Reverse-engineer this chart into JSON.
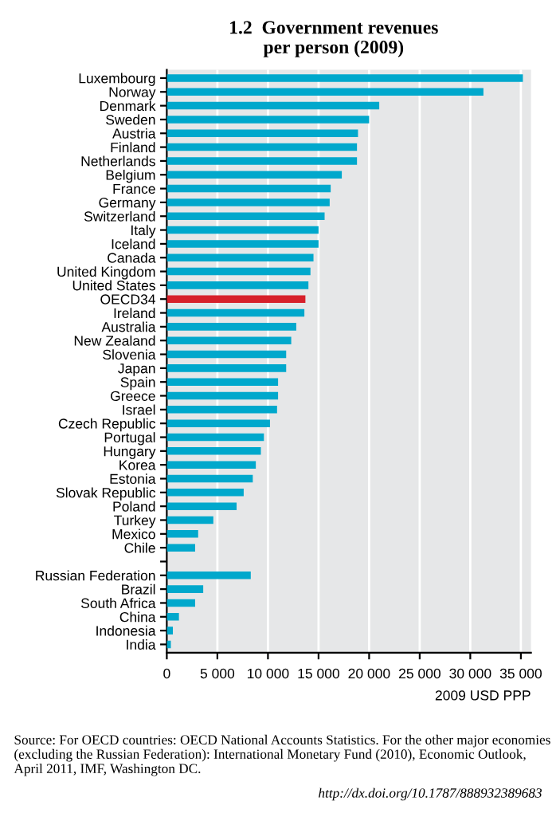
{
  "chart_data": {
    "type": "bar",
    "orientation": "horizontal",
    "title": "1.2  Government revenues\nper person (2009)",
    "xlabel": "2009 USD PPP",
    "categories": [
      "Luxembourg",
      "Norway",
      "Denmark",
      "Sweden",
      "Austria",
      "Finland",
      "Netherlands",
      "Belgium",
      "France",
      "Germany",
      "Switzerland",
      "Italy",
      "Iceland",
      "Canada",
      "United Kingdom",
      "United States",
      "OECD34",
      "Ireland",
      "Australia",
      "New Zealand",
      "Slovenia",
      "Japan",
      "Spain",
      "Greece",
      "Israel",
      "Czech Republic",
      "Portugal",
      "Hungary",
      "Korea",
      "Estonia",
      "Slovak Republic",
      "Poland",
      "Turkey",
      "Mexico",
      "Chile",
      null,
      "Russian Federation",
      "Brazil",
      "South Africa",
      "China",
      "Indonesia",
      "India"
    ],
    "values": [
      35200,
      31300,
      21000,
      20000,
      18900,
      18800,
      18800,
      17300,
      16200,
      16100,
      15600,
      15000,
      15000,
      14500,
      14200,
      14000,
      13700,
      13600,
      12800,
      12300,
      11800,
      11800,
      11000,
      11000,
      10900,
      10200,
      9600,
      9300,
      8800,
      8500,
      7600,
      6900,
      4600,
      3100,
      2800,
      null,
      8300,
      3600,
      2800,
      1200,
      600,
      400
    ],
    "colors": [
      "#00a8cc",
      "#00a8cc",
      "#00a8cc",
      "#00a8cc",
      "#00a8cc",
      "#00a8cc",
      "#00a8cc",
      "#00a8cc",
      "#00a8cc",
      "#00a8cc",
      "#00a8cc",
      "#00a8cc",
      "#00a8cc",
      "#00a8cc",
      "#00a8cc",
      "#00a8cc",
      "#d7202a",
      "#00a8cc",
      "#00a8cc",
      "#00a8cc",
      "#00a8cc",
      "#00a8cc",
      "#00a8cc",
      "#00a8cc",
      "#00a8cc",
      "#00a8cc",
      "#00a8cc",
      "#00a8cc",
      "#00a8cc",
      "#00a8cc",
      "#00a8cc",
      "#00a8cc",
      "#00a8cc",
      "#00a8cc",
      "#00a8cc",
      "#00a8cc",
      "#00a8cc",
      "#00a8cc",
      "#00a8cc",
      "#00a8cc",
      "#00a8cc",
      "#00a8cc"
    ],
    "xlim": [
      0,
      36000
    ],
    "xticks": [
      0,
      {
        "value": 5000,
        "label": "5 000"
      },
      {
        "value": 10000,
        "label": "10 000"
      },
      {
        "value": 15000,
        "label": "15 000"
      },
      {
        "value": 20000,
        "label": "20 000"
      },
      {
        "value": 25000,
        "label": "25 000"
      },
      {
        "value": 30000,
        "label": "30 000"
      },
      {
        "value": 35000,
        "label": "35 000"
      }
    ],
    "grid": "x",
    "annotations": [
      "Source: For OECD countries: OECD National Accounts Statistics. For the other major economies (excluding the Russian Federation): International Monetary Fund (2010), Economic Outlook, April 2011, IMF, Washington DC.",
      "http://dx.doi.org/10.1787/888932389683"
    ]
  }
}
